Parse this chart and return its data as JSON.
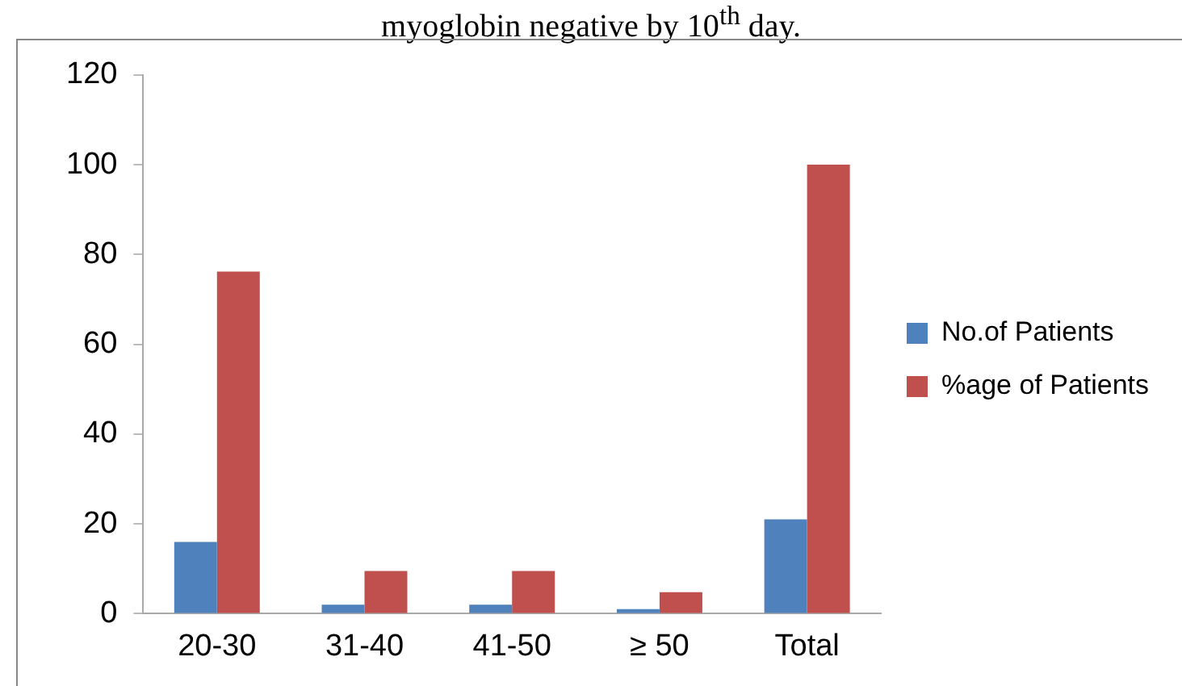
{
  "chart_data": {
    "type": "bar",
    "title": "myoglobin negative by 10$^{th}$ day.",
    "categories": [
      "20-30",
      "31-40",
      "41-50",
      "≥ 50",
      "Total"
    ],
    "series": [
      {
        "name": "No.of Patients",
        "color": "#4f81bd",
        "values": [
          16,
          2,
          2,
          1,
          21
        ]
      },
      {
        "name": "%age of Patients",
        "color": "#c0504d",
        "values": [
          76.2,
          9.5,
          9.5,
          4.8,
          100
        ]
      }
    ],
    "ylim": [
      0,
      120
    ],
    "yticks": [
      0,
      20,
      40,
      60,
      80,
      100,
      120
    ],
    "grid": false,
    "legend": "right"
  }
}
